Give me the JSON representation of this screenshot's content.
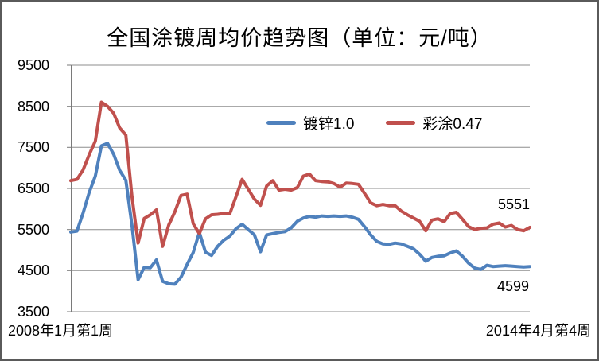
{
  "title": "全国涂镀周均价趋势图（单位：元/吨）",
  "legend": [
    {
      "label": "镀锌1.0",
      "color": "#4F81BD"
    },
    {
      "label": "彩涂0.47",
      "color": "#C0504D"
    }
  ],
  "y_axis": {
    "min": 3500,
    "max": 9500,
    "ticks": [
      9500,
      8500,
      7500,
      6500,
      5500,
      4500,
      3500
    ]
  },
  "x_axis": {
    "left_label": "2008年1月第1周",
    "right_label": "2014年4月第4周"
  },
  "end_labels": {
    "caitu": "5551",
    "duxin": "4599"
  },
  "colors": {
    "gridline": "#8e8e8e",
    "axis": "#7a7a7a",
    "background": "#ffffff",
    "border": "#5a5a5a"
  },
  "chart_data": {
    "type": "line",
    "title": "全国涂镀周均价趋势图（单位：元/吨）",
    "x_start": "2008年1月第1周",
    "x_end": "2014年4月第4周",
    "x_note": "weekly data sampled at ~monthly intervals, Jan 2008 - Apr 2014",
    "ylim": [
      3500,
      9500
    ],
    "y_tick_step": 1000,
    "grid": "horizontal",
    "legend_position": "top-center-inside",
    "series": [
      {
        "name": "镀锌1.0",
        "color": "#4F81BD",
        "final_value": 4599,
        "values": [
          5440,
          5460,
          5900,
          6400,
          6800,
          7540,
          7600,
          7330,
          6940,
          6700,
          5600,
          4280,
          4580,
          4570,
          4760,
          4240,
          4180,
          4170,
          4340,
          4650,
          4940,
          5430,
          4950,
          4870,
          5090,
          5240,
          5340,
          5520,
          5630,
          5500,
          5370,
          4960,
          5370,
          5400,
          5430,
          5450,
          5540,
          5700,
          5780,
          5820,
          5800,
          5830,
          5820,
          5830,
          5820,
          5830,
          5800,
          5750,
          5570,
          5370,
          5210,
          5150,
          5140,
          5170,
          5150,
          5090,
          5030,
          4900,
          4730,
          4820,
          4850,
          4860,
          4930,
          4980,
          4850,
          4680,
          4560,
          4530,
          4630,
          4600,
          4610,
          4620,
          4610,
          4600,
          4590,
          4599
        ]
      },
      {
        "name": "彩涂0.47",
        "color": "#C0504D",
        "final_value": 5551,
        "values": [
          6690,
          6720,
          6950,
          7320,
          7650,
          8600,
          8500,
          8330,
          7970,
          7800,
          6300,
          5170,
          5770,
          5860,
          5980,
          5090,
          5610,
          5930,
          6330,
          6360,
          5640,
          5400,
          5760,
          5860,
          5870,
          5890,
          5890,
          6300,
          6720,
          6480,
          6240,
          6090,
          6560,
          6690,
          6460,
          6480,
          6460,
          6520,
          6800,
          6850,
          6690,
          6670,
          6660,
          6620,
          6530,
          6630,
          6620,
          6600,
          6380,
          6150,
          6080,
          6110,
          6080,
          6080,
          5950,
          5860,
          5780,
          5700,
          5470,
          5730,
          5760,
          5690,
          5890,
          5920,
          5750,
          5570,
          5500,
          5530,
          5540,
          5630,
          5660,
          5560,
          5600,
          5500,
          5470,
          5551
        ]
      }
    ]
  }
}
